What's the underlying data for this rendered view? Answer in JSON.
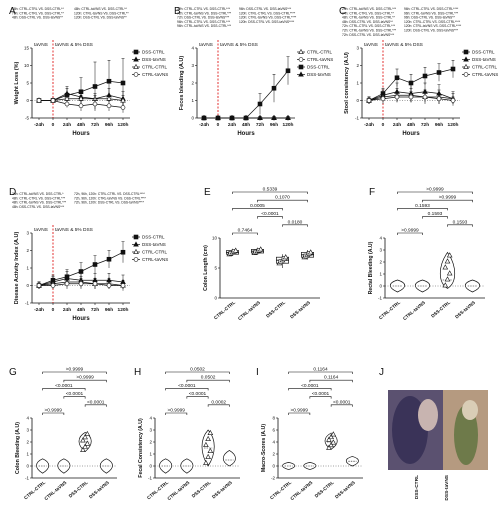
{
  "panels": [
    {
      "letter": "A"
    },
    {
      "letter": "B"
    },
    {
      "letter": "C"
    },
    {
      "letter": "D"
    },
    {
      "letter": "E"
    },
    {
      "letter": "F"
    },
    {
      "letter": "G"
    },
    {
      "letter": "H"
    },
    {
      "letter": "I"
    },
    {
      "letter": "J"
    }
  ],
  "chart_data": [
    {
      "id": "A",
      "type": "line",
      "ylabel": "Weight Loss (%)",
      "xlabel": "Hours",
      "categories": [
        "-24h",
        "0",
        "24h",
        "48h",
        "72h",
        "96h",
        "120h"
      ],
      "ylim": [
        -5,
        15
      ],
      "yticks": [
        -5,
        0,
        5,
        10,
        15
      ],
      "annotations": [
        "taVNS",
        "taVNS & 5% DSS"
      ],
      "stats": [
        "48h: CTRL-CTRL VS. DSS-CTRL**",
        "72h: CTRL-CTRL VS. DSS-CTRL**",
        "48h: DSS-CTRL VS. DSS-taVNS**",
        "48h: CTRL-taVNS VS. DSS-CTRL**",
        "120h: CTRL-taVNS VS. DSS-CTRL**",
        "120h: DSS-CTRL VS. DSS-taVNS**"
      ],
      "series": [
        {
          "name": "DSS-CTRL",
          "values": [
            0,
            0,
            1.5,
            2.5,
            4,
            5.5,
            5
          ],
          "err": [
            0.5,
            0.6,
            2,
            4,
            7,
            6,
            7
          ]
        },
        {
          "name": "DSS-taVNS",
          "values": [
            0,
            0,
            2,
            1,
            0.5,
            1.5,
            0.5
          ],
          "err": [
            0.5,
            0.5,
            2,
            1.5,
            1.5,
            2,
            2
          ]
        },
        {
          "name": "CTRL-CTRL",
          "values": [
            0,
            0,
            0.5,
            0.5,
            0.5,
            0.5,
            0
          ],
          "err": [
            0.5,
            0.5,
            1,
            1,
            1,
            1,
            1.5
          ]
        },
        {
          "name": "CTRL-taVNS",
          "values": [
            0,
            0,
            -1,
            -1.5,
            -1,
            -1.5,
            -2
          ],
          "err": [
            0.5,
            0.5,
            1,
            1.5,
            1.5,
            1.5,
            1.5
          ]
        }
      ]
    },
    {
      "id": "B",
      "type": "line",
      "ylabel": "Feces bleeding (A.U)",
      "xlabel": "Hours",
      "categories": [
        "-24h",
        "0",
        "24h",
        "48h",
        "72h",
        "96h",
        "120h"
      ],
      "ylim": [
        0,
        4
      ],
      "yticks": [
        0,
        1,
        2,
        3,
        4
      ],
      "annotations": [
        "taVNS",
        "taVNS & 5% DSS"
      ],
      "stats": [
        "72h: CTRL-CTRL VS. DSS-CTRL***",
        "72h: CTRL-taVNS VS. DSS-CTRL***",
        "72h: DSS-CTRL VS. DSS-taVNS***",
        "96h: CTRL-CTRL VS. DSS-CTRL***",
        "96h: CTRL-taVNS VS. DSS-CTRL***",
        "96h: DSS-CTRL VS. DSS-taVNS***",
        "120h: CTRL-CTRL VS. DSS-CTRL****",
        "120h: CTRL-taVNS VS. DSS-CTRL****",
        "120h: DSS-CTRL VS. DSS-taVNS****"
      ],
      "series": [
        {
          "name": "CTRL-CTRL",
          "values": [
            0,
            0,
            0,
            0,
            0,
            0,
            0
          ],
          "err": [
            0,
            0,
            0,
            0,
            0,
            0,
            0
          ]
        },
        {
          "name": "CTRL-taVNS",
          "values": [
            0,
            0,
            0,
            0,
            0,
            0,
            0
          ],
          "err": [
            0,
            0,
            0,
            0,
            0,
            0,
            0
          ]
        },
        {
          "name": "DSS-CTRL",
          "values": [
            0,
            0,
            0,
            0,
            0.8,
            1.7,
            2.7
          ],
          "err": [
            0,
            0,
            0,
            0,
            0.6,
            0.8,
            0.8
          ]
        },
        {
          "name": "DSS-taVNS",
          "values": [
            0,
            0,
            0,
            0,
            0,
            0,
            0
          ],
          "err": [
            0,
            0,
            0,
            0,
            0,
            0,
            0
          ]
        }
      ]
    },
    {
      "id": "C",
      "type": "line",
      "ylabel": "Stool consistency (A.U)",
      "xlabel": "Hours",
      "categories": [
        "-24h",
        "0",
        "24h",
        "48h",
        "72h",
        "96h",
        "120h"
      ],
      "ylim": [
        -1,
        3
      ],
      "yticks": [
        -1,
        0,
        1,
        2,
        3
      ],
      "annotations": [
        "taVNS",
        "taVNS & 5% DSS"
      ],
      "stats": [
        "24h: CTRL-taVNS VS. DSS-CTRL***",
        "24h: CTRL-CTRL VS. DSS-CTRL**",
        "48h: CTRL-taVNS VS. DSS-CTRL**",
        "48h: DSS-CTRL VS. DSS-taVNS**",
        "72h: CTRL-CTRL VS. DSS-CTRL***",
        "72h: CTRL-taVNS VS. DSS-CTRL***",
        "72h: DSS-CTRL VS. DSS-taVNS***",
        "96h: CTRL-CTRL VS. DSS-CTRL****",
        "96h: CTRL-taVNS VS. DSS-CTRL***",
        "96h: DSS-CTRL VS. DSS-taVNS**",
        "120h: CTRL-CTRL VS. DSS-CTRL****",
        "120h: CTRL-taVNS VS. DSS-CTRL****",
        "120h: DSS-CTRL VS. DSS-taVNS***"
      ],
      "series": [
        {
          "name": "DSS-CTRL",
          "values": [
            0,
            0.4,
            1.3,
            1.0,
            1.4,
            1.6,
            1.8
          ],
          "err": [
            0.2,
            0.3,
            0.5,
            0.5,
            0.5,
            0.5,
            0.5
          ]
        },
        {
          "name": "DSS-taVNS",
          "values": [
            0,
            0.3,
            0.5,
            0.4,
            0.5,
            0.4,
            0.1
          ],
          "err": [
            0.2,
            0.3,
            0.5,
            0.5,
            0.5,
            0.5,
            0.4
          ]
        },
        {
          "name": "CTRL-CTRL",
          "values": [
            0,
            0.2,
            0.3,
            0.3,
            0.2,
            0.2,
            0.1
          ],
          "err": [
            0.2,
            0.3,
            0.4,
            0.4,
            0.4,
            0.4,
            0.3
          ]
        },
        {
          "name": "CTRL-taVNS",
          "values": [
            0,
            0.1,
            0.2,
            0.2,
            0.2,
            0.1,
            0
          ],
          "err": [
            0.2,
            0.3,
            0.3,
            0.3,
            0.3,
            0.3,
            0.2
          ]
        }
      ]
    },
    {
      "id": "D",
      "type": "line",
      "ylabel": "Disease Activity Index (A.U)",
      "xlabel": "Hours",
      "categories": [
        "-24h",
        "0",
        "24h",
        "48h",
        "72h",
        "96h",
        "120h"
      ],
      "ylim": [
        -1,
        3
      ],
      "yticks": [
        -1,
        0,
        1,
        2,
        3
      ],
      "annotations": [
        "taVNS",
        "taVNS & 5% DSS"
      ],
      "stats": [
        "24h: CTRL-taVNS VS. DSS-CTRL*",
        "48h: CTRL-CTRL VS. DSS-CTRL***",
        "48h: CTRL-taVNS VS. DSS-CTRL***",
        "48h: DSS-CTRL VS. DSS-taVNS***",
        "72h, 96h, 120h: CTRL-CTRL VS. DSS-CTRL****",
        "72h, 96h, 120h: CTRL-taVNS VS. DSS-CTRL****",
        "72h, 96h, 120h: DSS-CTRL VS. DSS-taVNS****"
      ],
      "series": [
        {
          "name": "DSS-CTRL",
          "values": [
            0,
            0.3,
            0.5,
            0.8,
            1.2,
            1.5,
            1.9
          ],
          "err": [
            0.2,
            0.3,
            0.4,
            0.5,
            0.5,
            0.5,
            0.6
          ]
        },
        {
          "name": "DSS-taVNS",
          "values": [
            0,
            0.2,
            0.4,
            0.3,
            0.3,
            0.3,
            0.2
          ],
          "err": [
            0.2,
            0.3,
            0.4,
            0.4,
            0.4,
            0.4,
            0.4
          ]
        },
        {
          "name": "CTRL-CTRL",
          "values": [
            0,
            0.1,
            0.2,
            0.2,
            0.1,
            0.1,
            0
          ],
          "err": [
            0.2,
            0.2,
            0.3,
            0.3,
            0.3,
            0.3,
            0.3
          ]
        },
        {
          "name": "CTRL-taVNS",
          "values": [
            0,
            0,
            0.1,
            0.1,
            0.1,
            0,
            0
          ],
          "err": [
            0.2,
            0.2,
            0.3,
            0.3,
            0.3,
            0.2,
            0.2
          ]
        }
      ]
    },
    {
      "id": "E",
      "type": "box",
      "ylabel": "Colon Length (cm)",
      "categories": [
        "CTRL-CTRL",
        "CTRL-taVNS",
        "DSS-CTRL",
        "DSS-taVNS"
      ],
      "ylim": [
        0,
        10
      ],
      "yticks": [
        0,
        5,
        10
      ],
      "medians": [
        7.6,
        7.8,
        6.3,
        7.2
      ],
      "q1": [
        7.3,
        7.5,
        5.8,
        6.8
      ],
      "q3": [
        7.9,
        8.1,
        6.8,
        7.6
      ],
      "whisker_min": [
        7.0,
        7.2,
        5.0,
        6.4
      ],
      "whisker_max": [
        8.2,
        8.4,
        7.3,
        8.0
      ],
      "brackets": [
        {
          "from": 0,
          "to": 1,
          "label": "0.7464"
        },
        {
          "from": 2,
          "to": 3,
          "label": "0.0180"
        },
        {
          "from": 1,
          "to": 2,
          "label": "<0.0001"
        },
        {
          "from": 0,
          "to": 2,
          "label": "0.0005"
        },
        {
          "from": 1,
          "to": 3,
          "label": "0.1070"
        },
        {
          "from": 0,
          "to": 3,
          "label": "0.5339"
        }
      ]
    },
    {
      "id": "F",
      "type": "violin",
      "ylabel": "Rectal Bleeding (A.U)",
      "categories": [
        "CTRL-CTRL",
        "CTRL-taVNS",
        "DSS-CTRL",
        "DSS-taVNS"
      ],
      "ylim": [
        -1,
        4
      ],
      "yticks": [
        -1,
        0,
        1,
        2,
        3,
        4
      ],
      "medians": [
        0,
        0,
        0.5,
        0
      ],
      "ranges": [
        [
          -0.5,
          0.5
        ],
        [
          -0.5,
          0.5
        ],
        [
          -0.2,
          2.8
        ],
        [
          -0.5,
          0.5
        ]
      ],
      "brackets": [
        {
          "from": 0,
          "to": 1,
          "label": ">0.9999"
        },
        {
          "from": 2,
          "to": 3,
          "label": "0.1593"
        },
        {
          "from": 1,
          "to": 2,
          "label": "0.1593"
        },
        {
          "from": 0,
          "to": 2,
          "label": "0.1593"
        },
        {
          "from": 1,
          "to": 3,
          "label": ">0.9999"
        },
        {
          "from": 0,
          "to": 3,
          "label": ">0.9999"
        }
      ]
    },
    {
      "id": "G",
      "type": "violin",
      "ylabel": "Colon Bleeding (A.U)",
      "categories": [
        "CTRL-CTRL",
        "CTRL-taVNS",
        "DSS-CTRL",
        "DSS-taVNS"
      ],
      "ylim": [
        -1,
        4
      ],
      "yticks": [
        -1,
        0,
        1,
        2,
        3,
        4
      ],
      "medians": [
        0,
        0,
        2,
        0
      ],
      "ranges": [
        [
          -0.6,
          0.6
        ],
        [
          -0.6,
          0.6
        ],
        [
          1.2,
          2.8
        ],
        [
          -0.6,
          0.6
        ]
      ],
      "brackets": [
        {
          "from": 0,
          "to": 1,
          "label": ">0.9999"
        },
        {
          "from": 2,
          "to": 3,
          "label": "<0.0001"
        },
        {
          "from": 1,
          "to": 2,
          "label": "<0.0001"
        },
        {
          "from": 0,
          "to": 2,
          "label": "<0.0001"
        },
        {
          "from": 1,
          "to": 3,
          "label": ">0.9999"
        },
        {
          "from": 0,
          "to": 3,
          "label": ">0.9999"
        }
      ]
    },
    {
      "id": "H",
      "type": "violin",
      "ylabel": "Fecal Consistency (A.U)",
      "categories": [
        "CTRL-CTRL",
        "CTRL-taVNS",
        "DSS-CTRL",
        "DSS-taVNS"
      ],
      "ylim": [
        -1,
        4
      ],
      "yticks": [
        -1,
        0,
        1,
        2,
        3,
        4
      ],
      "medians": [
        0,
        0,
        1.5,
        0.5
      ],
      "ranges": [
        [
          -0.6,
          0.6
        ],
        [
          -0.6,
          0.6
        ],
        [
          0,
          3
        ],
        [
          0,
          1.3
        ]
      ],
      "brackets": [
        {
          "from": 0,
          "to": 1,
          "label": ">0.9999"
        },
        {
          "from": 2,
          "to": 3,
          "label": "0.0002"
        },
        {
          "from": 1,
          "to": 2,
          "label": "<0.0001"
        },
        {
          "from": 0,
          "to": 2,
          "label": "<0.0001"
        },
        {
          "from": 1,
          "to": 3,
          "label": "0.0502"
        },
        {
          "from": 0,
          "to": 3,
          "label": "0.0502"
        }
      ]
    },
    {
      "id": "I",
      "type": "violin",
      "ylabel": "Macro-Scores (A.U)",
      "categories": [
        "CTRL-CTRL",
        "CTRL-taVNS",
        "DSS-CTRL",
        "DSS-taVNS"
      ],
      "ylim": [
        -2,
        8
      ],
      "yticks": [
        -2,
        0,
        2,
        4,
        6,
        8
      ],
      "medians": [
        0,
        0,
        4,
        0.8
      ],
      "ranges": [
        [
          -0.6,
          0.6
        ],
        [
          -0.6,
          0.6
        ],
        [
          2.8,
          5.5
        ],
        [
          0,
          1.6
        ]
      ],
      "brackets": [
        {
          "from": 0,
          "to": 1,
          "label": ">0.9999"
        },
        {
          "from": 2,
          "to": 3,
          "label": "<0.0001"
        },
        {
          "from": 1,
          "to": 2,
          "label": "<0.0001"
        },
        {
          "from": 0,
          "to": 2,
          "label": "<0.0001"
        },
        {
          "from": 1,
          "to": 3,
          "label": "0.1164"
        },
        {
          "from": 0,
          "to": 3,
          "label": "0.1164"
        }
      ]
    }
  ],
  "photo": {
    "labels": [
      "DSS-CTRL",
      "DSS-taVNS"
    ]
  }
}
